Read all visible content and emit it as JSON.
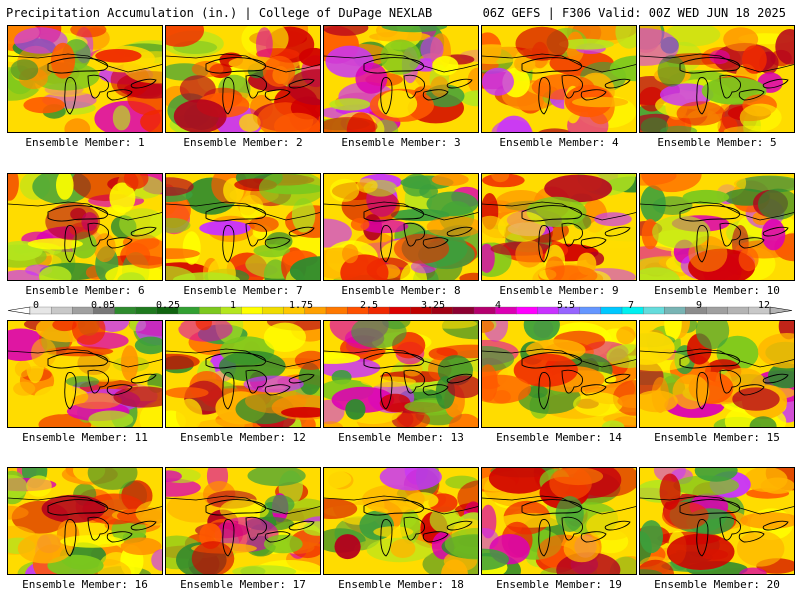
{
  "header": {
    "left_title": "Precipitation Accumulation (in.) | College of DuPage NEXLAB",
    "right_title": "06Z GEFS | F306 Valid: 00Z WED JUN 18 2025"
  },
  "panels": [
    {
      "label": "Ensemble Member: 1"
    },
    {
      "label": "Ensemble Member: 2"
    },
    {
      "label": "Ensemble Member: 3"
    },
    {
      "label": "Ensemble Member: 4"
    },
    {
      "label": "Ensemble Member: 5"
    },
    {
      "label": "Ensemble Member: 6"
    },
    {
      "label": "Ensemble Member: 7"
    },
    {
      "label": "Ensemble Member: 8"
    },
    {
      "label": "Ensemble Member: 9"
    },
    {
      "label": "Ensemble Member: 10"
    },
    {
      "label": "Ensemble Member: 11"
    },
    {
      "label": "Ensemble Member: 12"
    },
    {
      "label": "Ensemble Member: 13"
    },
    {
      "label": "Ensemble Member: 14"
    },
    {
      "label": "Ensemble Member: 15"
    },
    {
      "label": "Ensemble Member: 16"
    },
    {
      "label": "Ensemble Member: 17"
    },
    {
      "label": "Ensemble Member: 18"
    },
    {
      "label": "Ensemble Member: 19"
    },
    {
      "label": "Ensemble Member: 20"
    }
  ],
  "colorbar": {
    "tick_labels": [
      "0",
      "0.05",
      "0.25",
      "1",
      "1.75",
      "2.5",
      "3.25",
      "4",
      "5.5",
      "7",
      "9",
      "12"
    ],
    "colors": [
      "#e6e6e6",
      "#c8c8c8",
      "#a0a0a0",
      "#787878",
      "#2e8b2e",
      "#1f7a1f",
      "#106410",
      "#32a032",
      "#7cc81e",
      "#b4e61e",
      "#ffff00",
      "#f0dc00",
      "#ffc800",
      "#ffa000",
      "#ff7800",
      "#ff5000",
      "#f02800",
      "#dc0000",
      "#c00000",
      "#a00014",
      "#8c0032",
      "#b4006e",
      "#dc00b4",
      "#ff00ff",
      "#c832ff",
      "#9664ff",
      "#6496ff",
      "#00c8ff",
      "#00f0f0",
      "#64dcdc",
      "#78b4b4",
      "#8c8c8c",
      "#a0a0a0",
      "#b4b4b4",
      "#c8c8c8"
    ]
  }
}
